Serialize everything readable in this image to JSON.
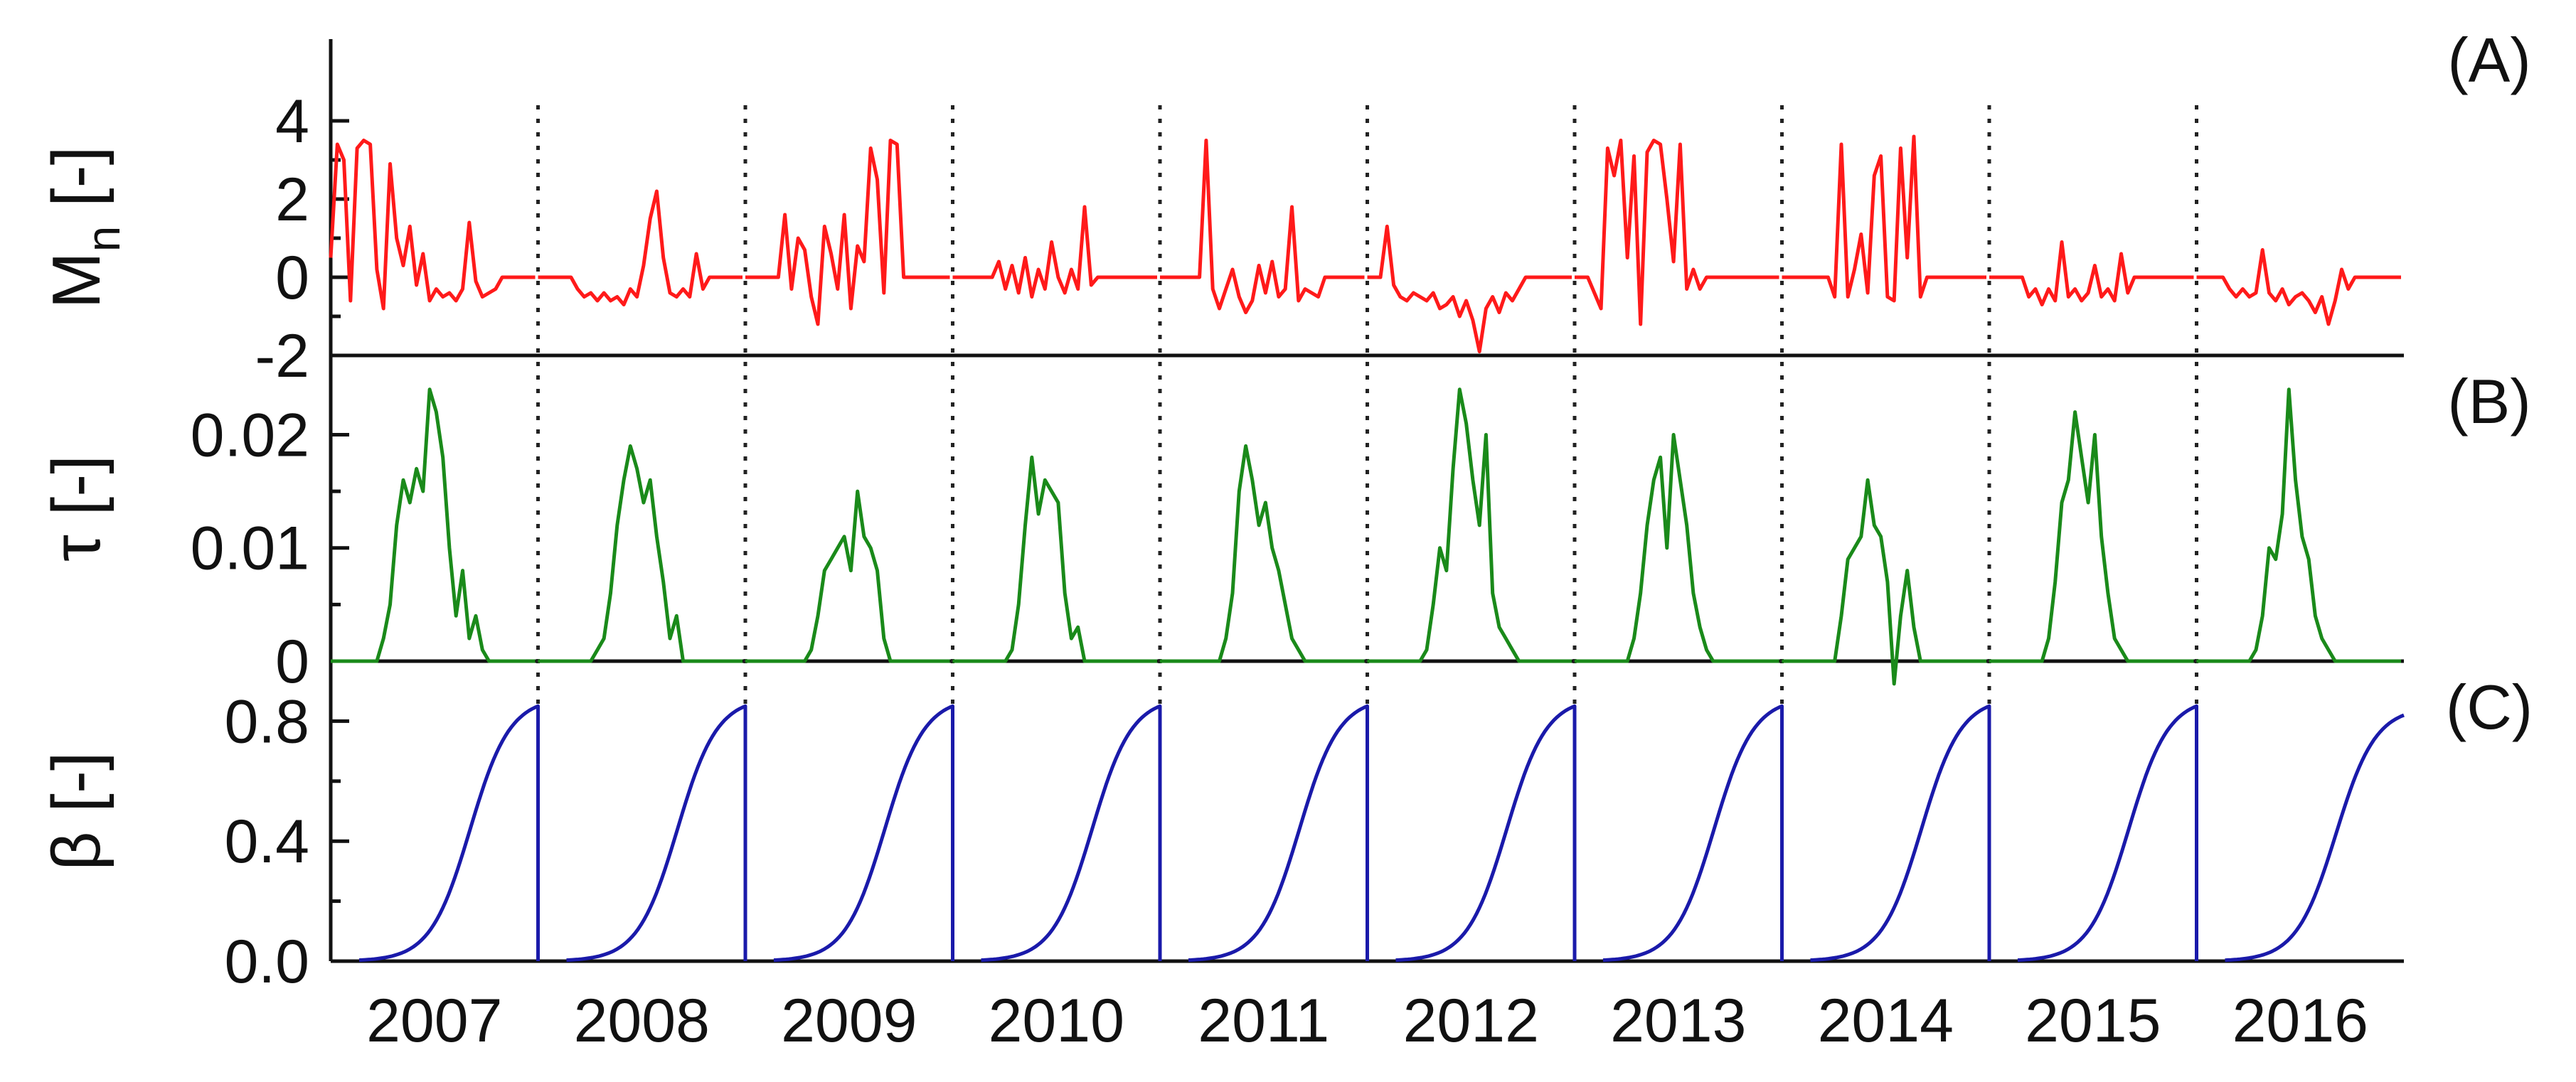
{
  "chart_data": {
    "type": "line",
    "x_categories": [
      "2007",
      "2008",
      "2009",
      "2010",
      "2011",
      "2012",
      "2013",
      "2014",
      "2015",
      "2016"
    ],
    "panels": [
      {
        "id": "A",
        "tag": "(A)",
        "ylabel_main": "M",
        "ylabel_sub": "n",
        "ylabel_rest": " [-]",
        "ylim": [
          -2,
          6
        ],
        "yticks": [
          -2,
          0,
          2,
          4
        ],
        "ytick_labels": [
          "-2",
          "0",
          "2",
          "4"
        ],
        "color": "#ff1a1a",
        "series": {
          "2007": [
            0.5,
            3.4,
            3.0,
            -0.6,
            3.3,
            3.5,
            3.4,
            0.2,
            -0.8,
            2.9,
            1.0,
            0.3,
            1.3,
            -0.2,
            0.6,
            -0.6,
            -0.3,
            -0.5,
            -0.4,
            -0.6,
            -0.3,
            1.4,
            -0.1,
            -0.5,
            -0.4,
            -0.3,
            0.0,
            0.0,
            0.0,
            0.0,
            0.0,
            0.0
          ],
          "2008": [
            0.0,
            0.0,
            0.0,
            0.0,
            0.0,
            0.0,
            -0.3,
            -0.5,
            -0.4,
            -0.6,
            -0.4,
            -0.6,
            -0.5,
            -0.7,
            -0.3,
            -0.5,
            0.3,
            1.5,
            2.2,
            0.5,
            -0.4,
            -0.5,
            -0.3,
            -0.5,
            0.6,
            -0.3,
            0.0,
            0.0,
            0.0,
            0.0,
            0.0,
            0.0
          ],
          "2009": [
            0.0,
            0.0,
            0.0,
            0.0,
            0.0,
            0.0,
            1.6,
            -0.3,
            1.0,
            0.7,
            -0.5,
            -1.2,
            1.3,
            0.6,
            -0.3,
            1.6,
            -0.8,
            0.8,
            0.4,
            3.3,
            2.5,
            -0.4,
            3.5,
            3.4,
            0.0,
            0.0,
            0.0,
            0.0,
            0.0,
            0.0,
            0.0,
            0.0
          ],
          "2010": [
            0.0,
            0.0,
            0.0,
            0.0,
            0.0,
            0.0,
            0.0,
            0.4,
            -0.3,
            0.3,
            -0.4,
            0.5,
            -0.5,
            0.2,
            -0.3,
            0.9,
            0.0,
            -0.4,
            0.2,
            -0.3,
            1.8,
            -0.2,
            0.0,
            0.0,
            0.0,
            0.0,
            0.0,
            0.0,
            0.0,
            0.0,
            0.0,
            0.0
          ],
          "2011": [
            0.0,
            0.0,
            0.0,
            0.0,
            0.0,
            0.0,
            0.0,
            3.5,
            -0.3,
            -0.8,
            -0.3,
            0.2,
            -0.5,
            -0.9,
            -0.6,
            0.3,
            -0.4,
            0.4,
            -0.5,
            -0.3,
            1.8,
            -0.6,
            -0.3,
            -0.4,
            -0.5,
            0.0,
            0.0,
            0.0,
            0.0,
            0.0,
            0.0,
            0.0
          ],
          "2012": [
            0.0,
            0.0,
            0.0,
            1.3,
            -0.2,
            -0.5,
            -0.6,
            -0.4,
            -0.5,
            -0.6,
            -0.4,
            -0.8,
            -0.7,
            -0.5,
            -1.0,
            -0.6,
            -1.1,
            -1.9,
            -0.8,
            -0.5,
            -0.9,
            -0.4,
            -0.6,
            -0.3,
            0.0,
            0.0,
            0.0,
            0.0,
            0.0,
            0.0,
            0.0,
            0.0
          ],
          "2013": [
            0.0,
            0.0,
            0.0,
            -0.4,
            -0.8,
            3.3,
            2.6,
            3.5,
            0.5,
            3.1,
            -1.2,
            3.2,
            3.5,
            3.4,
            2.0,
            0.4,
            3.4,
            -0.3,
            0.2,
            -0.3,
            0.0,
            0.0,
            0.0,
            0.0,
            0.0,
            0.0,
            0.0,
            0.0,
            0.0,
            0.0,
            0.0,
            0.0
          ],
          "2014": [
            0.0,
            0.0,
            0.0,
            0.0,
            0.0,
            0.0,
            0.0,
            0.0,
            -0.5,
            3.4,
            -0.5,
            0.2,
            1.1,
            -0.4,
            2.6,
            3.1,
            -0.5,
            -0.6,
            3.3,
            0.5,
            3.6,
            -0.5,
            0.0,
            0.0,
            0.0,
            0.0,
            0.0,
            0.0,
            0.0,
            0.0,
            0.0,
            0.0
          ],
          "2015": [
            0.0,
            0.0,
            0.0,
            0.0,
            0.0,
            0.0,
            -0.5,
            -0.3,
            -0.7,
            -0.3,
            -0.6,
            0.9,
            -0.5,
            -0.3,
            -0.6,
            -0.4,
            0.3,
            -0.5,
            -0.3,
            -0.6,
            0.6,
            -0.4,
            0.0,
            0.0,
            0.0,
            0.0,
            0.0,
            0.0,
            0.0,
            0.0,
            0.0,
            0.0
          ],
          "2016": [
            0.0,
            0.0,
            0.0,
            0.0,
            0.0,
            -0.3,
            -0.5,
            -0.3,
            -0.5,
            -0.4,
            0.7,
            -0.4,
            -0.6,
            -0.3,
            -0.7,
            -0.5,
            -0.4,
            -0.6,
            -0.9,
            -0.5,
            -1.2,
            -0.6,
            0.2,
            -0.3,
            0.0,
            0.0,
            0.0,
            0.0,
            0.0,
            0.0,
            0.0,
            0.0
          ]
        }
      },
      {
        "id": "B",
        "tag": "(B)",
        "ylabel_main": "τ [-]",
        "ylim": [
          0,
          0.027
        ],
        "yticks": [
          0,
          0.01,
          0.02
        ],
        "ytick_labels": [
          "0",
          "0.01",
          "0.02"
        ],
        "color": "#1a8a1a",
        "series": {
          "2007": [
            0,
            0,
            0,
            0,
            0,
            0,
            0,
            0,
            0.002,
            0.005,
            0.012,
            0.016,
            0.014,
            0.017,
            0.015,
            0.024,
            0.022,
            0.018,
            0.01,
            0.004,
            0.008,
            0.002,
            0.004,
            0.001,
            0,
            0,
            0,
            0,
            0,
            0,
            0,
            0
          ],
          "2008": [
            0,
            0,
            0,
            0,
            0,
            0,
            0,
            0,
            0,
            0.001,
            0.002,
            0.006,
            0.012,
            0.016,
            0.019,
            0.017,
            0.014,
            0.016,
            0.011,
            0.007,
            0.002,
            0.004,
            0,
            0,
            0,
            0,
            0,
            0,
            0,
            0,
            0,
            0
          ],
          "2009": [
            0,
            0,
            0,
            0,
            0,
            0,
            0,
            0,
            0,
            0,
            0.001,
            0.004,
            0.008,
            0.009,
            0.01,
            0.011,
            0.008,
            0.015,
            0.011,
            0.01,
            0.008,
            0.002,
            0,
            0,
            0,
            0,
            0,
            0,
            0,
            0,
            0,
            0
          ],
          "2010": [
            0,
            0,
            0,
            0,
            0,
            0,
            0,
            0,
            0,
            0.001,
            0.005,
            0.012,
            0.018,
            0.013,
            0.016,
            0.015,
            0.014,
            0.006,
            0.002,
            0.003,
            0,
            0,
            0,
            0,
            0,
            0,
            0,
            0,
            0,
            0,
            0,
            0
          ],
          "2011": [
            0,
            0,
            0,
            0,
            0,
            0,
            0,
            0,
            0,
            0,
            0.002,
            0.006,
            0.015,
            0.019,
            0.016,
            0.012,
            0.014,
            0.01,
            0.008,
            0.005,
            0.002,
            0.001,
            0,
            0,
            0,
            0,
            0,
            0,
            0,
            0,
            0,
            0
          ],
          "2012": [
            0,
            0,
            0,
            0,
            0,
            0,
            0,
            0,
            0,
            0.001,
            0.005,
            0.01,
            0.008,
            0.017,
            0.024,
            0.021,
            0.016,
            0.012,
            0.02,
            0.006,
            0.003,
            0.002,
            0.001,
            0,
            0,
            0,
            0,
            0,
            0,
            0,
            0,
            0
          ],
          "2013": [
            0,
            0,
            0,
            0,
            0,
            0,
            0,
            0,
            0,
            0.002,
            0.006,
            0.012,
            0.016,
            0.018,
            0.01,
            0.02,
            0.016,
            0.012,
            0.006,
            0.003,
            0.001,
            0,
            0,
            0,
            0,
            0,
            0,
            0,
            0,
            0,
            0,
            0
          ],
          "2014": [
            0,
            0,
            0,
            0,
            0,
            0,
            0,
            0,
            0,
            0.004,
            0.009,
            0.01,
            0.011,
            0.016,
            0.012,
            0.011,
            0.007,
            -0.002,
            0.004,
            0.008,
            0.003,
            0,
            0,
            0,
            0,
            0,
            0,
            0,
            0,
            0,
            0,
            0
          ],
          "2015": [
            0,
            0,
            0,
            0,
            0,
            0,
            0,
            0,
            0,
            0.002,
            0.007,
            0.014,
            0.016,
            0.022,
            0.018,
            0.014,
            0.02,
            0.011,
            0.006,
            0.002,
            0.001,
            0,
            0,
            0,
            0,
            0,
            0,
            0,
            0,
            0,
            0,
            0
          ],
          "2016": [
            0,
            0,
            0,
            0,
            0,
            0,
            0,
            0,
            0,
            0.001,
            0.004,
            0.01,
            0.009,
            0.013,
            0.024,
            0.016,
            0.011,
            0.009,
            0.004,
            0.002,
            0.001,
            0,
            0,
            0,
            0,
            0,
            0,
            0,
            0,
            0,
            0,
            0
          ]
        }
      },
      {
        "id": "C",
        "tag": "(C)",
        "ylabel_main": "β [-]",
        "ylim": [
          0,
          1.0
        ],
        "yticks": [
          0,
          0.4,
          0.8
        ],
        "ytick_labels": [
          "0.0",
          "0.4",
          "0.8"
        ],
        "color": "#1a1aaa",
        "curve": "sigmoid",
        "max_value": 0.85,
        "last_year_max": 0.82
      }
    ]
  }
}
